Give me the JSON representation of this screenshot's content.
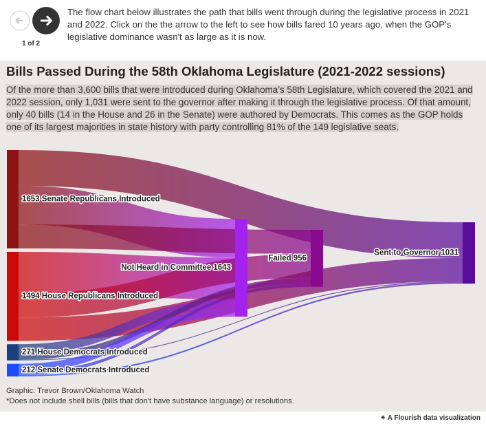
{
  "controls": {
    "pager": "1 of 2",
    "description": "The flow chart below illustrates the path that bills went through during the legislative process in 2021 and 2022. Click on the the arrow to the left to see how bills fared 10 years ago, when the GOP's legislative dominance wasn't as large as it is now."
  },
  "chart_data": {
    "type": "sankey",
    "title": "Bills Passed During the 58th Oklahoma Legislature (2021-2022 sessions)",
    "subtitle": "Of the more than 3,600 bills that were introduced during Oklahoma’s 58th Legislature, which covered the 2021 and 2022 session, only 1,031 were sent to the governor after making it through the legislative process. Of that amount, only 40 bills (14 in the House and 26 in the Senate) were authored by Democrats. This comes as the GOP holds one of its largest majorities in state history with party controlling 81% of the 149 legislative seats.",
    "nodes": [
      {
        "label": "1653 Senate Republicans Introduced",
        "value": 1653,
        "color": "#8e1414"
      },
      {
        "label": "1494 House Republicans Introduced",
        "value": 1494,
        "color": "#cc0a0a"
      },
      {
        "label": "271 House Democrats Introduced",
        "value": 271,
        "color": "#1c3f7c"
      },
      {
        "label": "212 Senate Democrats Introduced",
        "value": 212,
        "color": "#1a4cff"
      },
      {
        "label": "Not Heard in Committee 1643",
        "value": 1643,
        "color": "#a422ee"
      },
      {
        "label": "Failed 956",
        "value": 956,
        "color": "#8a0a8f"
      },
      {
        "label": "Sent to Governor 1031",
        "value": 1031,
        "color": "#5a0c9c"
      }
    ],
    "links": [
      {
        "source": 0,
        "target": 6,
        "value": 600
      },
      {
        "source": 0,
        "target": 4,
        "value": 650
      },
      {
        "source": 0,
        "target": 5,
        "value": 403
      },
      {
        "source": 1,
        "target": 4,
        "value": 700
      },
      {
        "source": 1,
        "target": 5,
        "value": 403
      },
      {
        "source": 1,
        "target": 6,
        "value": 391
      },
      {
        "source": 2,
        "target": 4,
        "value": 160
      },
      {
        "source": 2,
        "target": 5,
        "value": 97
      },
      {
        "source": 2,
        "target": 6,
        "value": 14
      },
      {
        "source": 3,
        "target": 4,
        "value": 133
      },
      {
        "source": 3,
        "target": 5,
        "value": 53
      },
      {
        "source": 3,
        "target": 6,
        "value": 26
      }
    ],
    "source": "Graphic: Trevor Brown/Oklahoma Watch",
    "footnote": "*Does not include shell bills (bills that don't have substance language) or resolutions."
  },
  "footer": {
    "brand": "A Flourish data visualization"
  }
}
